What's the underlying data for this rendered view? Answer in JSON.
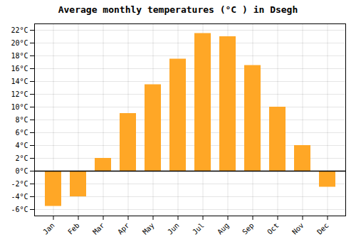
{
  "chart_data": {
    "type": "bar",
    "title": "Average monthly temperatures (°C ) in Dsegh",
    "categories": [
      "Jan",
      "Feb",
      "Mar",
      "Apr",
      "May",
      "Jun",
      "Jul",
      "Aug",
      "Sep",
      "Oct",
      "Nov",
      "Dec"
    ],
    "values": [
      -5.5,
      -4.0,
      2.0,
      9.0,
      13.5,
      17.5,
      21.5,
      21.0,
      16.5,
      10.0,
      4.0,
      -2.5
    ],
    "color": "#FFA726",
    "ylim": [
      -7,
      23
    ],
    "yticks": [
      {
        "value": -6,
        "label": "-6°C"
      },
      {
        "value": -4,
        "label": "-4°C"
      },
      {
        "value": -2,
        "label": "-2°C"
      },
      {
        "value": 0,
        "label": "0°C"
      },
      {
        "value": 2,
        "label": "2°C"
      },
      {
        "value": 4,
        "label": "4°C"
      },
      {
        "value": 6,
        "label": "6°C"
      },
      {
        "value": 8,
        "label": "8°C"
      },
      {
        "value": 10,
        "label": "10°C"
      },
      {
        "value": 12,
        "label": "12°C"
      },
      {
        "value": 14,
        "label": "14°C"
      },
      {
        "value": 16,
        "label": "16°C"
      },
      {
        "value": 18,
        "label": "18°C"
      },
      {
        "value": 20,
        "label": "20°C"
      },
      {
        "value": 22,
        "label": "22°C"
      }
    ],
    "grid": true
  }
}
